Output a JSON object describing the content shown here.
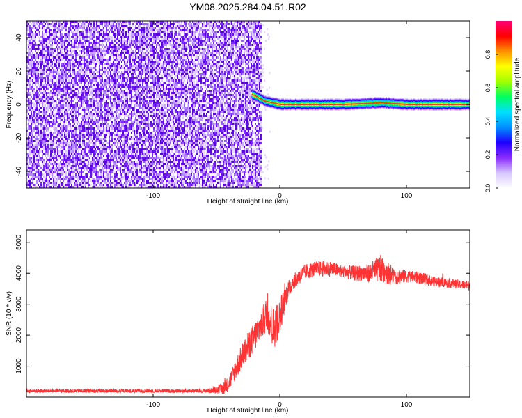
{
  "title": "YM08.2025.284.04.51.R02",
  "colors": {
    "background": "#ffffff",
    "snr_line": "#ff3333",
    "ridge": "#e63a2b",
    "speckle_dark": "#5a00e6",
    "speckle_light": "#c9a8ff"
  },
  "chart_data": [
    {
      "id": "spectrogram",
      "type": "heatmap",
      "xlabel": "Height of straight line (km)",
      "ylabel": "Frequency (Hz)",
      "xlim": [
        -200,
        150
      ],
      "ylim": [
        -50,
        50
      ],
      "xticks": [
        -100,
        0,
        100
      ],
      "yticks": [
        -40,
        -20,
        0,
        20,
        40
      ],
      "colorbar": {
        "label": "Normalized spectral amplitude",
        "range": [
          0,
          1
        ],
        "ticks": [
          "0.0",
          "0.2",
          "0.4",
          "0.6",
          "0.8"
        ],
        "colormap": "rainbow",
        "colormap_stops": [
          "#ffffff",
          "#d6c6ff",
          "#8a2bff",
          "#1e00ff",
          "#0090ff",
          "#00e0ff",
          "#00ff60",
          "#a0ff00",
          "#ffff00",
          "#ff9000",
          "#ff0000",
          "#ff0077"
        ]
      },
      "noise_region_x": [
        -200,
        -15
      ],
      "ridge": {
        "x_start": -22,
        "x_end": 150,
        "frequency": 0,
        "points": [
          {
            "x": -22,
            "y": 6
          },
          {
            "x": -17,
            "y": 4
          },
          {
            "x": -12,
            "y": 2
          },
          {
            "x": -6,
            "y": 1
          },
          {
            "x": 0,
            "y": 0
          },
          {
            "x": 20,
            "y": 0
          },
          {
            "x": 50,
            "y": 0
          },
          {
            "x": 80,
            "y": 1
          },
          {
            "x": 100,
            "y": 0
          },
          {
            "x": 130,
            "y": 0
          },
          {
            "x": 150,
            "y": 0
          }
        ]
      }
    },
    {
      "id": "snr",
      "type": "line",
      "xlabel": "Height of straight line (km)",
      "ylabel": "SNR (10 * v/v)",
      "xlim": [
        -200,
        150
      ],
      "ylim": [
        0,
        5400
      ],
      "xticks": [
        -100,
        0,
        100
      ],
      "yticks": [
        1000,
        2000,
        3000,
        4000,
        5000
      ],
      "series": [
        {
          "color": "#ff3333",
          "x": [
            -200,
            -150,
            -100,
            -60,
            -50,
            -45,
            -40,
            -35,
            -30,
            -25,
            -20,
            -15,
            -10,
            -5,
            0,
            5,
            10,
            20,
            30,
            40,
            50,
            60,
            70,
            80,
            90,
            100,
            110,
            120,
            130,
            140,
            150
          ],
          "y": [
            200,
            200,
            200,
            200,
            220,
            280,
            450,
            900,
            1300,
            1650,
            1950,
            2300,
            2700,
            2200,
            2600,
            3300,
            3700,
            4050,
            4150,
            4150,
            4050,
            4000,
            4000,
            4150,
            3900,
            3900,
            3850,
            3750,
            3700,
            3650,
            3600
          ],
          "noise_amplitude": [
            60,
            60,
            60,
            60,
            100,
            200,
            250,
            350,
            400,
            450,
            500,
            500,
            600,
            700,
            600,
            350,
            250,
            250,
            250,
            250,
            200,
            250,
            300,
            450,
            300,
            200,
            200,
            170,
            150,
            150,
            150
          ]
        }
      ]
    }
  ]
}
